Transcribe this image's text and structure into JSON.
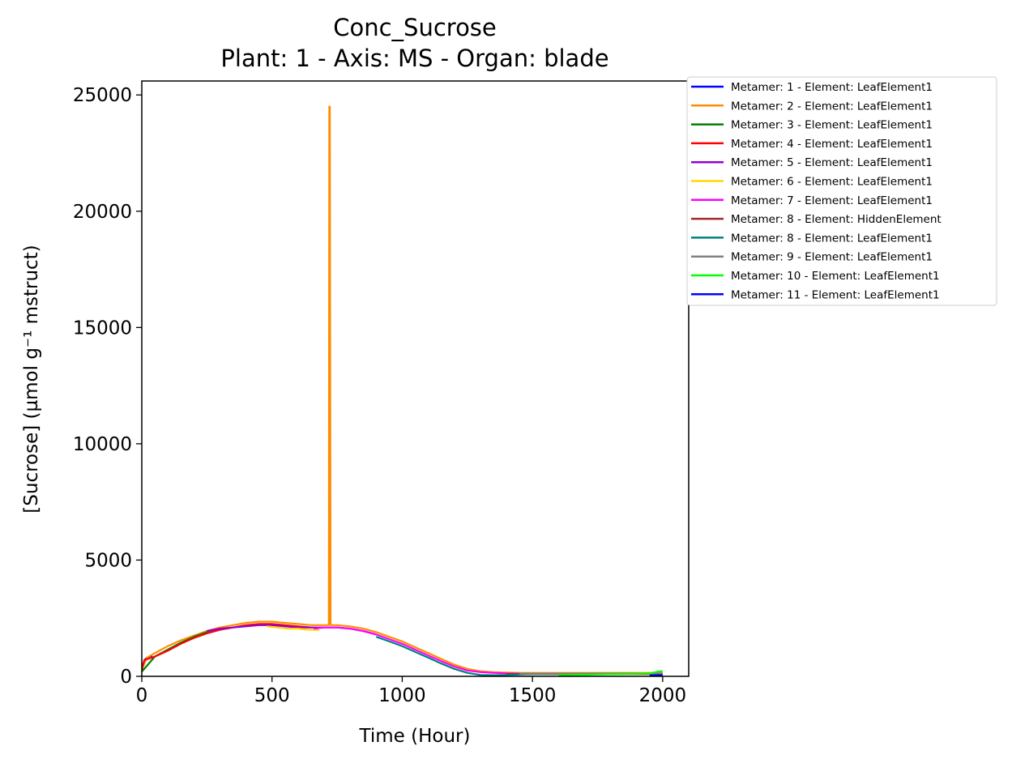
{
  "chart_data": {
    "type": "line",
    "title": "Conc_Sucrose",
    "subtitle": "Plant: 1 - Axis: MS - Organ: blade",
    "xlabel": "Time (Hour)",
    "ylabel": "[Sucrose] (µmol g⁻¹ mstruct)",
    "xlim": [
      0,
      2100
    ],
    "ylim": [
      0,
      25600
    ],
    "xticks": [
      0,
      500,
      1000,
      1500,
      2000
    ],
    "yticks": [
      0,
      5000,
      10000,
      15000,
      20000,
      25000
    ],
    "grid": false,
    "legend_position": "outside-right-top",
    "series": [
      {
        "name": "Metamer: 1 - Element: LeafElement1",
        "color": "#0000ff",
        "x": [
          0,
          5,
          10,
          20,
          30,
          40
        ],
        "y": [
          200,
          500,
          700,
          800,
          850,
          900
        ]
      },
      {
        "name": "Metamer: 2 - Element: LeafElement1",
        "color": "#ff8c00",
        "x": [
          0,
          20,
          50,
          100,
          150,
          200,
          250,
          300,
          350,
          400,
          450,
          500,
          550,
          600,
          650,
          700,
          718,
          720,
          722,
          725,
          750,
          800,
          850,
          900,
          950,
          1000,
          1050,
          1100,
          1150,
          1200,
          1250,
          1300,
          1350,
          1400,
          1450,
          1500,
          1550,
          1600,
          1650,
          1700,
          1750,
          1800,
          1850,
          1900,
          1950,
          2000
        ],
        "y": [
          300,
          800,
          1000,
          1300,
          1550,
          1750,
          1950,
          2100,
          2200,
          2300,
          2350,
          2350,
          2300,
          2250,
          2200,
          2200,
          2200,
          24500,
          24500,
          2200,
          2200,
          2150,
          2050,
          1900,
          1700,
          1500,
          1250,
          1000,
          750,
          500,
          320,
          220,
          180,
          160,
          150,
          150,
          150,
          150,
          150,
          150,
          150,
          150,
          150,
          150,
          150,
          150
        ]
      },
      {
        "name": "Metamer: 3 - Element: LeafElement1",
        "color": "#008000",
        "x": [
          0,
          50,
          100,
          150,
          200,
          250,
          300
        ],
        "y": [
          200,
          850,
          1150,
          1450,
          1700,
          1900,
          2050
        ]
      },
      {
        "name": "Metamer: 4 - Element: LeafElement1",
        "color": "#ff0000",
        "x": [
          0,
          10,
          50,
          100,
          150,
          200,
          250,
          300,
          350,
          400,
          450,
          500,
          550,
          600,
          650
        ],
        "y": [
          300,
          700,
          850,
          1100,
          1400,
          1650,
          1850,
          2000,
          2100,
          2200,
          2250,
          2250,
          2200,
          2150,
          2100
        ]
      },
      {
        "name": "Metamer: 5 - Element: LeafElement1",
        "color": "#9400d3",
        "x": [
          250,
          300,
          350,
          400,
          450,
          500,
          550,
          600,
          650,
          700,
          750,
          800,
          850,
          900
        ],
        "y": [
          1950,
          2050,
          2100,
          2150,
          2200,
          2200,
          2150,
          2100,
          2100,
          2100,
          2100,
          2050,
          1950,
          1800
        ]
      },
      {
        "name": "Metamer: 6 - Element: LeafElement1",
        "color": "#ffd700",
        "x": [
          480,
          520,
          560,
          600,
          640,
          680
        ],
        "y": [
          2150,
          2100,
          2050,
          2050,
          2000,
          2000
        ]
      },
      {
        "name": "Metamer: 7 - Element: LeafElement1",
        "color": "#ff00ff",
        "x": [
          660,
          700,
          750,
          800,
          850,
          900,
          950,
          1000,
          1050,
          1100,
          1150,
          1200,
          1250,
          1300,
          1350,
          1400,
          1450
        ],
        "y": [
          2050,
          2100,
          2100,
          2050,
          1950,
          1800,
          1600,
          1400,
          1150,
          900,
          650,
          420,
          250,
          180,
          150,
          130,
          120
        ]
      },
      {
        "name": "Metamer: 8 - Element: HiddenElement",
        "color": "#a52a2a",
        "x": [
          1400,
          1500,
          1600,
          1700,
          1800,
          1900,
          2000
        ],
        "y": [
          100,
          100,
          100,
          100,
          100,
          100,
          100
        ]
      },
      {
        "name": "Metamer: 8 - Element: LeafElement1",
        "color": "#008080",
        "x": [
          900,
          950,
          1000,
          1050,
          1100,
          1150,
          1200,
          1250,
          1300,
          1350,
          1400,
          1450,
          1500,
          1550,
          1600,
          1650
        ],
        "y": [
          1700,
          1500,
          1300,
          1050,
          800,
          550,
          320,
          150,
          60,
          50,
          60,
          80,
          100,
          100,
          100,
          100
        ]
      },
      {
        "name": "Metamer: 9 - Element: LeafElement1",
        "color": "#808080",
        "x": [
          1450,
          1500,
          1550,
          1600,
          1650,
          1700,
          1750,
          1800,
          1850,
          1900,
          1950,
          2000
        ],
        "y": [
          120,
          120,
          120,
          120,
          120,
          120,
          120,
          120,
          120,
          120,
          120,
          120
        ]
      },
      {
        "name": "Metamer: 10 - Element: LeafElement1",
        "color": "#00ff00",
        "x": [
          1600,
          1650,
          1700,
          1750,
          1800,
          1850,
          1900,
          1950,
          1990,
          2000
        ],
        "y": [
          50,
          60,
          70,
          80,
          90,
          100,
          110,
          130,
          220,
          220
        ]
      },
      {
        "name": "Metamer: 11 - Element: LeafElement1",
        "color": "#0000ff",
        "x": [
          1950,
          1975,
          2000
        ],
        "y": [
          40,
          50,
          60
        ]
      }
    ]
  }
}
